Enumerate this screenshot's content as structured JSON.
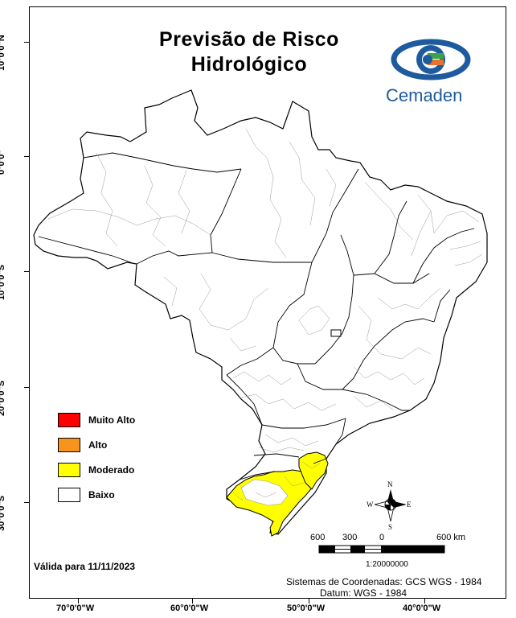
{
  "map": {
    "title_line1": "Previsão de Risco",
    "title_line2": "Hidrológico",
    "logo_text": "Cemaden",
    "lat_labels": [
      "10°0'0\"N",
      "0°0'0\"",
      "10°0'0\"S",
      "20°0'0\"S",
      "30°0'0\"S"
    ],
    "lon_labels": [
      "70°0'0\"W",
      "60°0'0\"W",
      "50°0'0\"W",
      "40°0'0\"W"
    ],
    "legend": [
      {
        "label": "Muito Alto",
        "color": "#ff0000"
      },
      {
        "label": "Alto",
        "color": "#f7941d"
      },
      {
        "label": "Moderado",
        "color": "#ffff00"
      },
      {
        "label": "Baixo",
        "color": "#ffffff"
      }
    ],
    "valid_text": "Válida para 11/11/2023",
    "scale": {
      "labels": [
        "600",
        "300",
        "0",
        "600 km"
      ],
      "ratio": "1:20000000"
    },
    "compass": {
      "n": "N",
      "s": "S",
      "e": "E",
      "w": "W"
    },
    "coord_system": "Sistemas de Coordenadas: GCS WGS - 1984",
    "datum": "Datum: WGS - 1984",
    "colors": {
      "brazil_fill": "#ffffff",
      "risk_moderate": "#ffff00",
      "border": "#000000",
      "internal": "#9a9a9a"
    }
  }
}
